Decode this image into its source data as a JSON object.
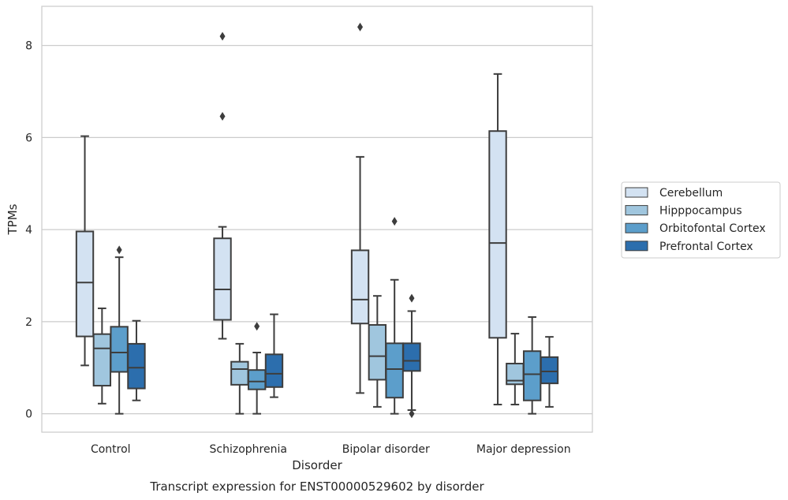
{
  "chart_data": {
    "type": "box",
    "title": "",
    "caption": "Transcript expression for ENST00000529602 by disorder",
    "xlabel": "Disorder",
    "ylabel": "TPMs",
    "ylim": [
      -0.4,
      8.85
    ],
    "yticks": [
      0,
      2,
      4,
      6,
      8
    ],
    "grid": "horizontal",
    "legend_position": "right",
    "categories": [
      "Control",
      "Schizophrenia",
      "Bipolar disorder",
      "Major depression"
    ],
    "series": [
      {
        "name": "Cerebellum",
        "color": "#d3e2f2",
        "boxes": [
          {
            "whisker_low": 1.05,
            "q1": 1.68,
            "median": 2.85,
            "q3": 3.96,
            "whisker_high": 6.03,
            "outliers": []
          },
          {
            "whisker_low": 1.63,
            "q1": 2.04,
            "median": 2.7,
            "q3": 3.81,
            "whisker_high": 4.06,
            "outliers": [
              8.2,
              6.46
            ]
          },
          {
            "whisker_low": 0.45,
            "q1": 1.96,
            "median": 2.48,
            "q3": 3.55,
            "whisker_high": 5.58,
            "outliers": [
              8.4
            ]
          },
          {
            "whisker_low": 0.2,
            "q1": 1.65,
            "median": 3.71,
            "q3": 6.14,
            "whisker_high": 7.38,
            "outliers": []
          }
        ]
      },
      {
        "name": "Hipppocampus",
        "color": "#a0c6de",
        "boxes": [
          {
            "whisker_low": 0.22,
            "q1": 0.61,
            "median": 1.42,
            "q3": 1.73,
            "whisker_high": 2.29,
            "outliers": []
          },
          {
            "whisker_low": 0.0,
            "q1": 0.63,
            "median": 0.97,
            "q3": 1.13,
            "whisker_high": 1.52,
            "outliers": []
          },
          {
            "whisker_low": 0.15,
            "q1": 0.74,
            "median": 1.25,
            "q3": 1.93,
            "whisker_high": 2.56,
            "outliers": []
          },
          {
            "whisker_low": 0.2,
            "q1": 0.64,
            "median": 0.72,
            "q3": 1.09,
            "whisker_high": 1.74,
            "outliers": []
          }
        ]
      },
      {
        "name": "Orbitofontal Cortex",
        "color": "#5c9ecb",
        "boxes": [
          {
            "whisker_low": 0.0,
            "q1": 0.91,
            "median": 1.33,
            "q3": 1.89,
            "whisker_high": 3.4,
            "outliers": [
              3.56
            ]
          },
          {
            "whisker_low": 0.0,
            "q1": 0.53,
            "median": 0.7,
            "q3": 0.95,
            "whisker_high": 1.33,
            "outliers": [
              1.9
            ]
          },
          {
            "whisker_low": 0.0,
            "q1": 0.35,
            "median": 0.97,
            "q3": 1.53,
            "whisker_high": 2.91,
            "outliers": [
              4.18
            ]
          },
          {
            "whisker_low": 0.0,
            "q1": 0.29,
            "median": 0.86,
            "q3": 1.36,
            "whisker_high": 2.1,
            "outliers": []
          }
        ]
      },
      {
        "name": "Prefrontal Cortex",
        "color": "#2c6ead",
        "boxes": [
          {
            "whisker_low": 0.29,
            "q1": 0.55,
            "median": 1.0,
            "q3": 1.52,
            "whisker_high": 2.02,
            "outliers": []
          },
          {
            "whisker_low": 0.36,
            "q1": 0.58,
            "median": 0.87,
            "q3": 1.29,
            "whisker_high": 2.16,
            "outliers": []
          },
          {
            "whisker_low": 0.08,
            "q1": 0.93,
            "median": 1.15,
            "q3": 1.53,
            "whisker_high": 2.23,
            "outliers": [
              2.51,
              0.0
            ]
          },
          {
            "whisker_low": 0.15,
            "q1": 0.66,
            "median": 0.92,
            "q3": 1.23,
            "whisker_high": 1.67,
            "outliers": []
          }
        ]
      }
    ]
  }
}
